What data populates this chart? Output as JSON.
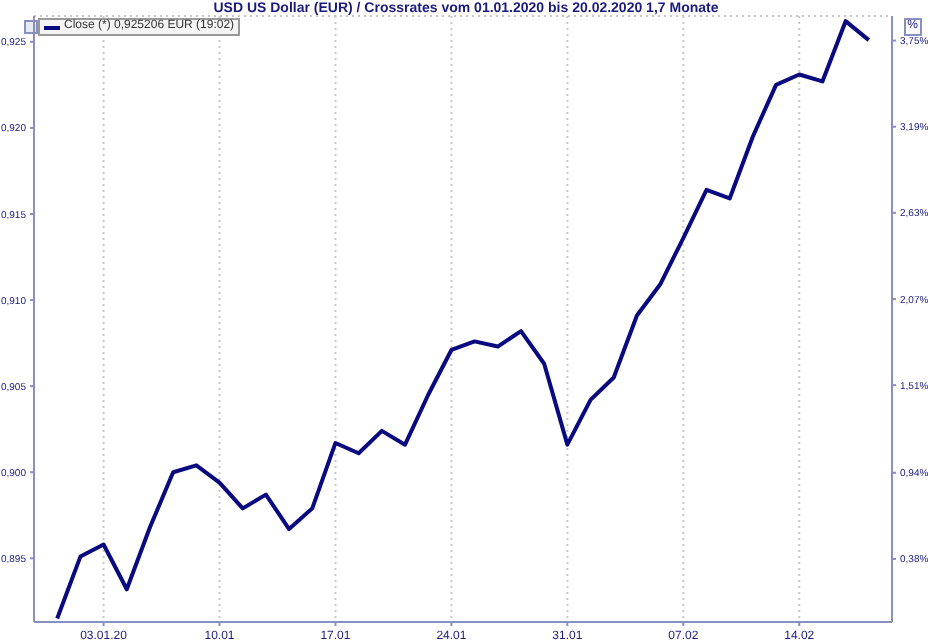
{
  "chart_data": {
    "type": "line",
    "title": "USD US Dollar (EUR) / Crossrates vom 01.01.2020 bis 20.02.2020 1,7 Monate",
    "y2label": "%",
    "categories": [
      null,
      null,
      "03.01.20",
      null,
      null,
      null,
      null,
      "10.01",
      null,
      null,
      null,
      null,
      "17.01",
      null,
      null,
      null,
      null,
      "24.01",
      null,
      null,
      null,
      null,
      "31.01",
      null,
      null,
      null,
      null,
      "07.02",
      null,
      null,
      null,
      null,
      "14.02",
      null,
      null,
      null
    ],
    "series": [
      {
        "name": "Close (*) 0,925206 EUR (19:02)",
        "color": "#0a0a80",
        "values": [
          0.8915,
          0.8951,
          0.8958,
          0.8932,
          0.8968,
          0.9,
          0.9004,
          0.8994,
          0.8979,
          0.8987,
          0.8967,
          0.8979,
          0.9017,
          0.9011,
          0.9024,
          0.9016,
          0.9045,
          0.9071,
          0.9076,
          0.9073,
          0.9082,
          0.9063,
          0.9016,
          0.9042,
          0.9055,
          0.9091,
          0.9109,
          0.9136,
          0.9164,
          0.9159,
          0.9195,
          0.9225,
          0.9231,
          0.9227,
          0.9262,
          0.9251
        ]
      }
    ],
    "ylim": [
      0.8913,
      0.9265
    ],
    "yticks": [
      {
        "value": 0.895,
        "label": "0,895"
      },
      {
        "value": 0.9,
        "label": "0,900"
      },
      {
        "value": 0.905,
        "label": "0,905"
      },
      {
        "value": 0.91,
        "label": "0,910"
      },
      {
        "value": 0.915,
        "label": "0,915"
      },
      {
        "value": 0.92,
        "label": "0,920"
      },
      {
        "value": 0.925,
        "label": "0,925"
      }
    ],
    "y2lim": [
      -0.03,
      3.91
    ],
    "y2ticks": [
      {
        "value": 0.38,
        "label": "0,38%"
      },
      {
        "value": 0.94,
        "label": "0,94%"
      },
      {
        "value": 1.51,
        "label": "1,51%"
      },
      {
        "value": 2.07,
        "label": "2,07%"
      },
      {
        "value": 2.63,
        "label": "2,63%"
      },
      {
        "value": 3.19,
        "label": "3,19%"
      },
      {
        "value": 3.75,
        "label": "3,75%"
      }
    ],
    "grid": true,
    "legend": "top left",
    "marker": "none",
    "line_style": "solid"
  }
}
